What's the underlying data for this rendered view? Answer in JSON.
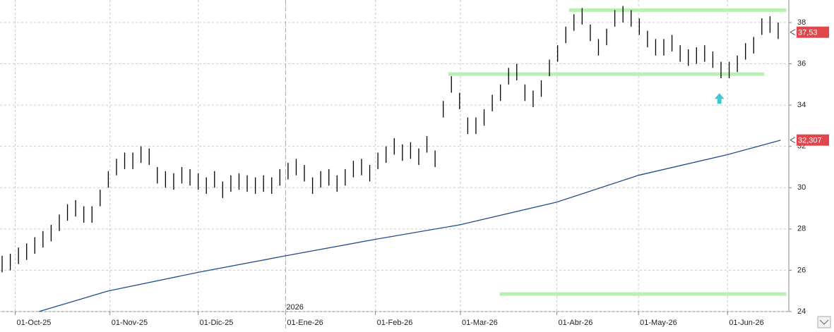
{
  "chart_data": {
    "type": "ohlc",
    "x": [
      0,
      1,
      2,
      3,
      4,
      5,
      6,
      7,
      8,
      9,
      10,
      11,
      12,
      13,
      14,
      15,
      16,
      17,
      18,
      19,
      20,
      21,
      22,
      23,
      24,
      25,
      26,
      27,
      28,
      29,
      30,
      31,
      32,
      33,
      34,
      35,
      36,
      37,
      38,
      39,
      40,
      41,
      42,
      43,
      44,
      45,
      46,
      47,
      48,
      49,
      50,
      51,
      52,
      53,
      54,
      55,
      56,
      57,
      58,
      59,
      60,
      61,
      62,
      63,
      64,
      65,
      66,
      67,
      68,
      69,
      70,
      71,
      72,
      73,
      74,
      75,
      76,
      77,
      78,
      79,
      80,
      81,
      82,
      83,
      84,
      85,
      86,
      87,
      88,
      89,
      90,
      91,
      92,
      93,
      94,
      95
    ],
    "lows": [
      25.9,
      26.0,
      26.3,
      26.5,
      26.8,
      27.1,
      27.4,
      27.9,
      28.4,
      28.6,
      28.3,
      28.3,
      29.1,
      30.0,
      30.6,
      30.9,
      30.9,
      31.2,
      31.1,
      30.2,
      30.0,
      29.9,
      30.2,
      30.1,
      29.9,
      29.7,
      30.0,
      29.5,
      29.8,
      29.9,
      29.8,
      29.7,
      29.8,
      29.7,
      30.1,
      30.4,
      30.6,
      30.3,
      29.7,
      30.0,
      30.1,
      29.8,
      30.1,
      30.5,
      30.6,
      30.3,
      30.9,
      31.2,
      31.6,
      31.3,
      31.4,
      31.1,
      31.7,
      31.0,
      33.4,
      34.6,
      33.8,
      32.6,
      32.6,
      33.0,
      33.7,
      34.2,
      35.0,
      35.2,
      34.2,
      33.9,
      34.4,
      35.4,
      36.1,
      37.0,
      37.6,
      37.9,
      37.1,
      36.4,
      36.9,
      37.8,
      38.0,
      37.8,
      37.4,
      36.8,
      36.4,
      36.4,
      36.6,
      36.1,
      35.9,
      36.0,
      36.1,
      35.8,
      35.3,
      35.3,
      35.6,
      36.2,
      36.5,
      37.4,
      37.5,
      37.2
    ],
    "highs": [
      26.7,
      26.8,
      27.1,
      27.3,
      27.6,
      27.9,
      28.2,
      28.7,
      29.2,
      29.4,
      29.1,
      29.1,
      29.9,
      30.8,
      31.4,
      31.7,
      31.7,
      32.0,
      31.9,
      31.0,
      30.8,
      30.7,
      31.0,
      30.9,
      30.7,
      30.5,
      30.8,
      30.3,
      30.6,
      30.7,
      30.6,
      30.5,
      30.6,
      30.5,
      30.9,
      31.2,
      31.4,
      31.1,
      30.5,
      30.8,
      30.9,
      30.6,
      30.9,
      31.3,
      31.4,
      31.1,
      31.7,
      32.0,
      32.4,
      32.1,
      32.2,
      31.9,
      32.5,
      31.8,
      34.2,
      35.4,
      34.6,
      33.4,
      33.4,
      33.8,
      34.5,
      35.0,
      35.8,
      36.0,
      35.0,
      34.7,
      35.2,
      36.2,
      36.9,
      37.8,
      38.4,
      38.7,
      37.9,
      37.2,
      37.7,
      38.6,
      38.8,
      38.6,
      38.2,
      37.6,
      37.2,
      37.2,
      37.4,
      36.9,
      36.7,
      36.8,
      36.9,
      36.6,
      36.1,
      36.1,
      36.4,
      37.0,
      37.3,
      38.2,
      38.3,
      38.0
    ],
    "bar_color": "#000000",
    "moving_average": {
      "color": "#1f4e8c",
      "x": [
        4.5,
        13,
        24,
        34.7,
        45.7,
        56,
        67.9,
        77.9,
        88.8,
        95.3
      ],
      "values": [
        24.0,
        25.0,
        25.9,
        26.7,
        27.5,
        28.2,
        29.3,
        30.6,
        31.6,
        32.3
      ]
    },
    "levels": [
      {
        "value": 38.6,
        "x": [
          69.4,
          96
        ]
      },
      {
        "value": 35.5,
        "x": [
          54.6,
          93.3
        ]
      },
      {
        "value": 24.85,
        "x": [
          60.9,
          96
        ]
      }
    ],
    "level_color": "#b7f0b1",
    "price_labels": [
      {
        "value": 37.53,
        "label": "37,53"
      },
      {
        "value": 32.307,
        "label": "32,307"
      }
    ],
    "price_label_color": "#e0474c",
    "arrow": {
      "x": 87.8,
      "value": 34.3,
      "color": "#3cc9d0"
    },
    "year_marker": {
      "x": 34.7,
      "label": "2026"
    },
    "xlim": [
      -0.26,
      96.3
    ],
    "ylim": [
      24,
      39.09
    ],
    "yticks": [
      24,
      26,
      28,
      30,
      32,
      34,
      36,
      38
    ],
    "xticks": [
      {
        "value": 1.6,
        "label": "01-Oct-25"
      },
      {
        "value": 13.2,
        "label": "01-Nov-25"
      },
      {
        "value": 24.0,
        "label": "01-Dic-25"
      },
      {
        "value": 34.7,
        "label": "01-Ene-26"
      },
      {
        "value": 45.7,
        "label": "01-Feb-26"
      },
      {
        "value": 56.1,
        "label": "01-Mar-26"
      },
      {
        "value": 67.9,
        "label": "01-Abr-26"
      },
      {
        "value": 77.9,
        "label": "01-May-26"
      },
      {
        "value": 88.8,
        "label": "01-Jun-26"
      }
    ],
    "grid": true
  }
}
